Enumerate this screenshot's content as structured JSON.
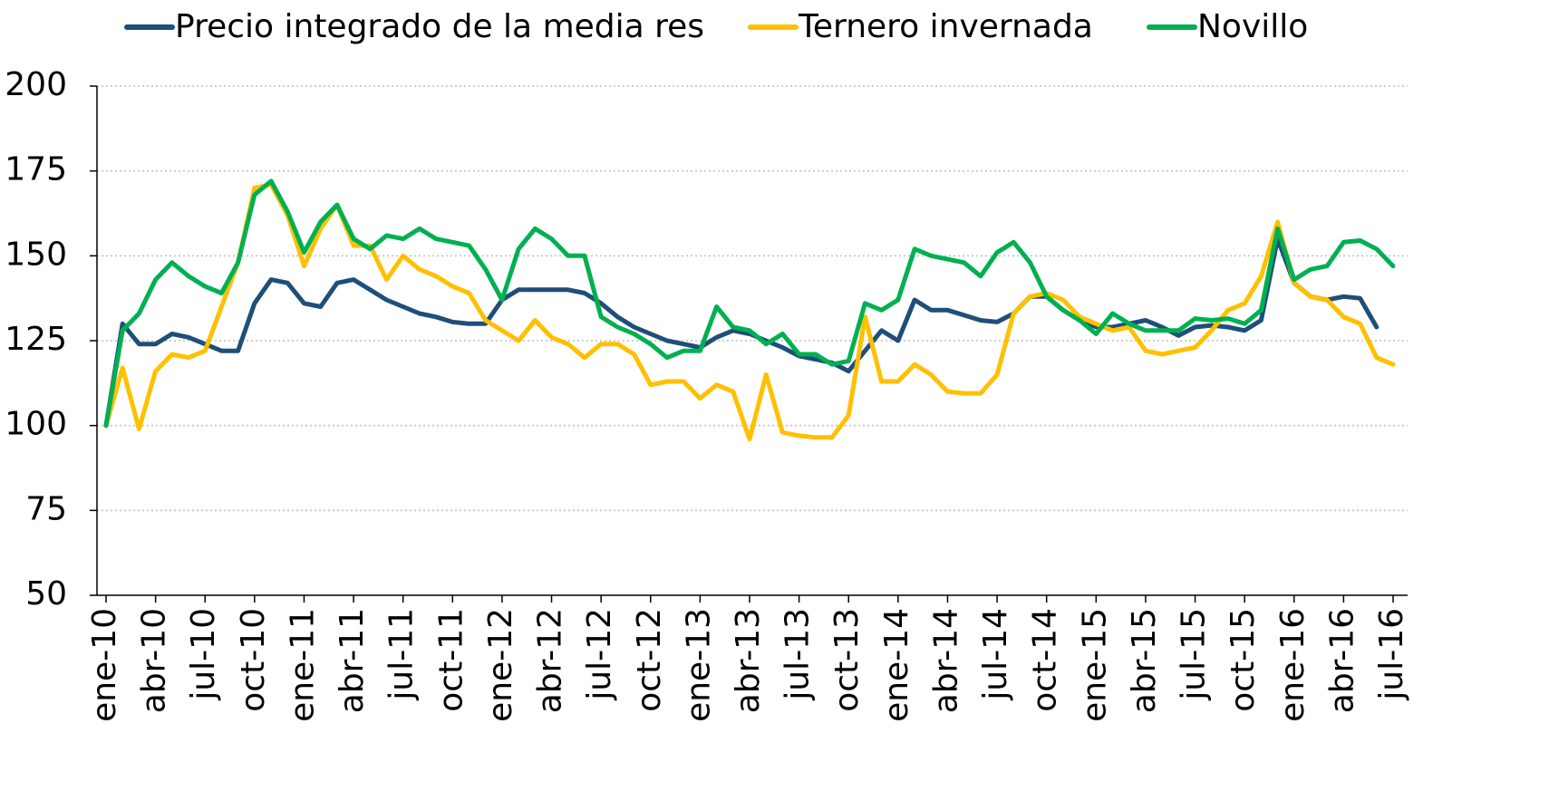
{
  "chart_data": {
    "type": "line",
    "categories": [
      "ene-10",
      null,
      null,
      "abr-10",
      null,
      null,
      "jul-10",
      null,
      null,
      "oct-10",
      null,
      null,
      "ene-11",
      null,
      null,
      "abr-11",
      null,
      null,
      "jul-11",
      null,
      null,
      "oct-11",
      null,
      null,
      "ene-12",
      null,
      null,
      "abr-12",
      null,
      null,
      "jul-12",
      null,
      null,
      "oct-12",
      null,
      null,
      "ene-13",
      null,
      null,
      "abr-13",
      null,
      null,
      "jul-13",
      null,
      null,
      "oct-13",
      null,
      null,
      "ene-14",
      null,
      null,
      "abr-14",
      null,
      null,
      "jul-14",
      null,
      null,
      "oct-14",
      null,
      null,
      "ene-15",
      null,
      null,
      "abr-15",
      null,
      null,
      "jul-15",
      null,
      null,
      "oct-15",
      null,
      null,
      "ene-16",
      null,
      null,
      "abr-16",
      null,
      null,
      "jul-16"
    ],
    "series": [
      {
        "name": "Precio integrado de la media res",
        "color": "#1f4e79",
        "values": [
          100,
          130,
          124,
          124,
          127,
          126,
          124,
          122,
          122,
          136,
          143,
          142,
          136,
          135,
          142,
          143,
          140,
          137,
          135,
          133,
          132,
          130.5,
          130,
          130,
          137,
          140,
          140,
          140,
          140,
          139,
          136,
          132,
          129,
          127,
          125,
          124,
          123,
          126,
          128,
          127,
          125,
          123,
          120.5,
          119.5,
          118.5,
          116,
          122,
          128,
          125,
          137,
          134,
          134,
          132.5,
          131,
          130.5,
          133,
          138,
          138,
          134,
          131,
          129,
          129,
          130,
          131,
          129,
          126.5,
          129,
          129.5,
          129,
          128,
          131,
          155,
          142,
          138,
          137,
          138,
          137.5,
          129,
          null
        ]
      },
      {
        "name": "Ternero invernada",
        "color": "#ffc000",
        "values": [
          100,
          117,
          99,
          116,
          121,
          120,
          122,
          135,
          148,
          170,
          171,
          162,
          147,
          158,
          165,
          153,
          153,
          143,
          150,
          146,
          144,
          141,
          139,
          131,
          128,
          125,
          131,
          126,
          124,
          120,
          124,
          124,
          121,
          112,
          113,
          113,
          108,
          112,
          110,
          96,
          115,
          98,
          97,
          96.5,
          96.5,
          103,
          132,
          113,
          113,
          118,
          115,
          110,
          109.5,
          109.5,
          115,
          133,
          138,
          139,
          137,
          132,
          130,
          128,
          129,
          122,
          121,
          122,
          123,
          128,
          134,
          136,
          144,
          160,
          142,
          138,
          137,
          132,
          130,
          120,
          118
        ]
      },
      {
        "name": "Novillo",
        "color": "#00b050",
        "values": [
          100,
          128,
          133,
          143,
          148,
          144,
          141,
          139,
          148,
          168,
          172,
          163,
          151,
          160,
          165,
          155,
          152,
          156,
          155,
          158,
          155,
          154,
          153,
          146,
          137,
          152,
          158,
          155,
          150,
          150,
          132,
          129,
          127,
          124,
          120,
          122,
          122,
          135,
          129,
          128,
          124,
          127,
          121,
          121,
          118,
          119,
          136,
          134,
          137,
          152,
          150,
          149,
          148,
          144,
          151,
          154,
          148,
          138,
          134,
          131,
          127,
          133,
          130,
          128,
          128,
          128,
          131.5,
          131,
          131.5,
          130,
          134,
          158,
          143,
          146,
          147,
          154,
          154.5,
          152,
          147
        ]
      }
    ],
    "ylim": [
      50,
      200
    ],
    "yticks": [
      50,
      75,
      100,
      125,
      150,
      175,
      200
    ],
    "grid": true
  }
}
